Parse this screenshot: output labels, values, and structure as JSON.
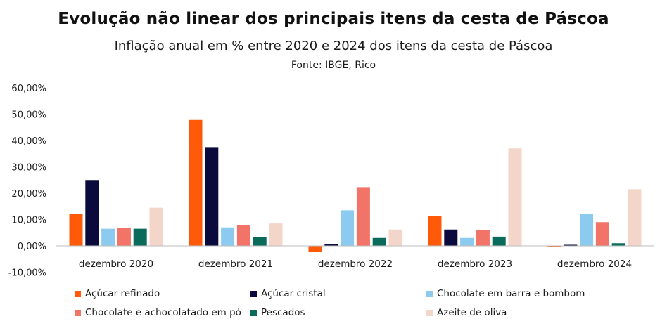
{
  "chart_data": {
    "type": "bar",
    "title": "Evolução não linear dos principais itens da cesta de Páscoa",
    "subtitle": "Inflação anual em % entre 2020 e 2024 dos itens da cesta de Páscoa",
    "source": "Fonte: IBGE, Rico",
    "xlabel": "",
    "ylabel": "",
    "ylim": [
      -10,
      60
    ],
    "yticks": [
      -10,
      0,
      10,
      20,
      30,
      40,
      50,
      60
    ],
    "ytick_labels": [
      "-10,00%",
      "0,00%",
      "10,00%",
      "20,00%",
      "30,00%",
      "40,00%",
      "50,00%",
      "60,00%"
    ],
    "categories": [
      "dezembro 2020",
      "dezembro 2021",
      "dezembro 2022",
      "dezembro 2023",
      "dezembro 2024"
    ],
    "legend_position": "bottom",
    "series": [
      {
        "name": "Açúcar refinado",
        "color": "#ff5a0a",
        "values": [
          12.0,
          47.8,
          -2.3,
          11.2,
          -0.4
        ]
      },
      {
        "name": "Açúcar cristal",
        "color": "#0a0a3c",
        "values": [
          25.0,
          37.5,
          0.8,
          6.2,
          0.4
        ]
      },
      {
        "name": "Chocolate em barra e bombom",
        "color": "#8ccbef",
        "values": [
          6.5,
          7.0,
          13.5,
          3.0,
          12.0
        ]
      },
      {
        "name": "Chocolate e achocolatado em pó",
        "color": "#f27368",
        "values": [
          6.8,
          8.0,
          22.3,
          6.0,
          9.0
        ]
      },
      {
        "name": "Pescados",
        "color": "#0b6b5a",
        "values": [
          6.5,
          3.2,
          3.0,
          3.5,
          1.0
        ]
      },
      {
        "name": "Azeite de oliva",
        "color": "#f4d5c9",
        "values": [
          14.5,
          8.5,
          6.2,
          37.0,
          21.5
        ]
      }
    ]
  }
}
